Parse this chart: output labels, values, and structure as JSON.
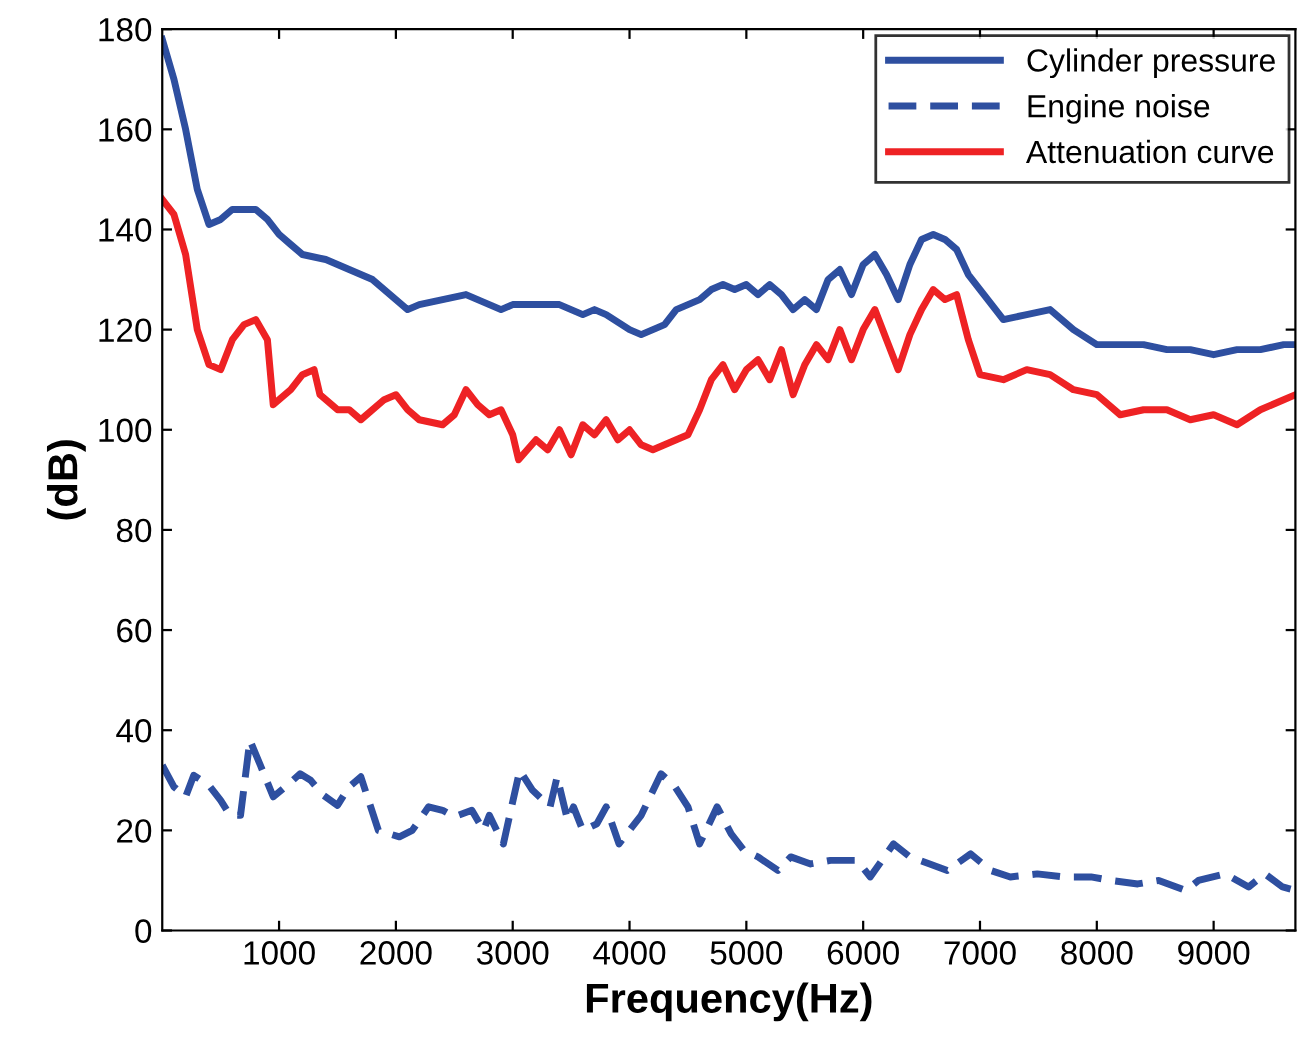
{
  "chart_data": {
    "type": "line",
    "xlabel": "Frequency(Hz)",
    "ylabel": "(dB)",
    "xlim": [
      0,
      9700
    ],
    "xticks": [
      1000,
      2000,
      3000,
      4000,
      5000,
      6000,
      7000,
      8000,
      9000
    ],
    "ylim": [
      0,
      180
    ],
    "yticks": [
      0,
      20,
      40,
      60,
      80,
      100,
      120,
      140,
      160,
      180
    ],
    "grid": false,
    "legend": "top right",
    "marker": "none",
    "series": [
      {
        "name": "Cylinder pressure",
        "color": "#2e4fa0",
        "line_style": "solid",
        "x": [
          0,
          100,
          200,
          300,
          400,
          500,
          600,
          700,
          800,
          900,
          1000,
          1100,
          1200,
          1400,
          1600,
          1800,
          2000,
          2100,
          2200,
          2400,
          2600,
          2800,
          2900,
          3000,
          3200,
          3400,
          3500,
          3600,
          3700,
          3800,
          4000,
          4100,
          4300,
          4400,
          4500,
          4600,
          4700,
          4800,
          4900,
          5000,
          5100,
          5200,
          5300,
          5400,
          5500,
          5600,
          5700,
          5800,
          5900,
          6000,
          6100,
          6200,
          6300,
          6400,
          6500,
          6600,
          6700,
          6800,
          6900,
          7000,
          7200,
          7400,
          7600,
          7800,
          8000,
          8200,
          8400,
          8600,
          8800,
          9000,
          9200,
          9400,
          9600,
          9700
        ],
        "values": [
          178,
          170,
          160,
          148,
          141,
          142,
          144,
          144,
          144,
          142,
          139,
          137,
          135,
          134,
          132,
          130,
          126,
          124,
          125,
          126,
          127,
          125,
          124,
          125,
          125,
          125,
          124,
          123,
          124,
          123,
          120,
          119,
          121,
          124,
          125,
          126,
          128,
          129,
          128,
          129,
          127,
          129,
          127,
          124,
          126,
          124,
          130,
          132,
          127,
          133,
          135,
          131,
          126,
          133,
          138,
          139,
          138,
          136,
          131,
          128,
          122,
          123,
          124,
          120,
          117,
          117,
          117,
          116,
          116,
          115,
          116,
          116,
          117,
          117
        ]
      },
      {
        "name": "Engine noise",
        "color": "#2e4fa0",
        "line_style": "dashed",
        "x": [
          0,
          100,
          200,
          270,
          400,
          500,
          580,
          670,
          750,
          840,
          950,
          1070,
          1180,
          1270,
          1380,
          1500,
          1600,
          1700,
          1850,
          2030,
          2140,
          2280,
          2400,
          2500,
          2650,
          2750,
          2800,
          2920,
          3060,
          3170,
          3320,
          3380,
          3470,
          3520,
          3600,
          3720,
          3800,
          3910,
          4100,
          4270,
          4390,
          4500,
          4600,
          4750,
          4870,
          4980,
          5100,
          5270,
          5380,
          5550,
          5720,
          5950,
          6060,
          6260,
          6400,
          6570,
          6720,
          6920,
          7090,
          7260,
          7490,
          7720,
          7950,
          8120,
          8350,
          8530,
          8760,
          8870,
          9100,
          9300,
          9440,
          9590,
          9700
        ],
        "values": [
          33,
          28.7,
          26.7,
          31,
          29,
          26,
          23,
          23,
          38,
          33,
          26.7,
          29,
          31.3,
          30,
          27,
          25,
          28.7,
          30.7,
          20,
          18.7,
          20,
          24.7,
          24,
          22.7,
          24,
          20,
          23,
          17.3,
          32,
          28,
          24.7,
          30.7,
          22,
          24.7,
          20,
          21.3,
          24.7,
          17.3,
          23,
          31.3,
          28.7,
          24.7,
          17.3,
          24.7,
          19.3,
          16,
          14.7,
          12,
          14.7,
          13.3,
          14,
          14,
          10.7,
          17.3,
          14.7,
          13.3,
          12,
          15.3,
          12,
          10.7,
          11.3,
          10.7,
          10.7,
          10,
          9.3,
          10,
          8,
          10,
          11.3,
          8.7,
          11.3,
          8.7,
          8
        ]
      },
      {
        "name": "Attenuation curve",
        "color": "#ee2224",
        "line_style": "solid",
        "x": [
          0,
          100,
          200,
          300,
          400,
          500,
          600,
          700,
          800,
          900,
          950,
          1100,
          1200,
          1300,
          1350,
          1500,
          1600,
          1700,
          1900,
          2000,
          2100,
          2200,
          2400,
          2500,
          2600,
          2700,
          2800,
          2900,
          3000,
          3050,
          3200,
          3300,
          3400,
          3500,
          3600,
          3700,
          3800,
          3900,
          4000,
          4100,
          4200,
          4300,
          4500,
          4600,
          4700,
          4800,
          4900,
          5000,
          5100,
          5200,
          5300,
          5400,
          5500,
          5600,
          5700,
          5800,
          5900,
          6000,
          6100,
          6200,
          6300,
          6400,
          6500,
          6600,
          6700,
          6800,
          6900,
          7000,
          7200,
          7400,
          7600,
          7800,
          8000,
          8200,
          8400,
          8600,
          8800,
          9000,
          9200,
          9400,
          9600,
          9700
        ],
        "values": [
          146,
          143,
          135,
          120,
          113,
          112,
          118,
          121,
          122,
          118,
          105,
          108,
          111,
          112,
          107,
          104,
          104,
          102,
          106,
          107,
          104,
          102,
          101,
          103,
          108,
          105,
          103,
          104,
          99,
          94,
          98,
          96,
          100,
          95,
          101,
          99,
          102,
          98,
          100,
          97,
          96,
          97,
          99,
          104,
          110,
          113,
          108,
          112,
          114,
          110,
          116,
          107,
          113,
          117,
          114,
          120,
          114,
          120,
          124,
          118,
          112,
          119,
          124,
          128,
          126,
          127,
          118,
          111,
          110,
          112,
          111,
          108,
          107,
          103,
          104,
          104,
          102,
          103,
          101,
          104,
          106,
          107
        ]
      }
    ]
  }
}
